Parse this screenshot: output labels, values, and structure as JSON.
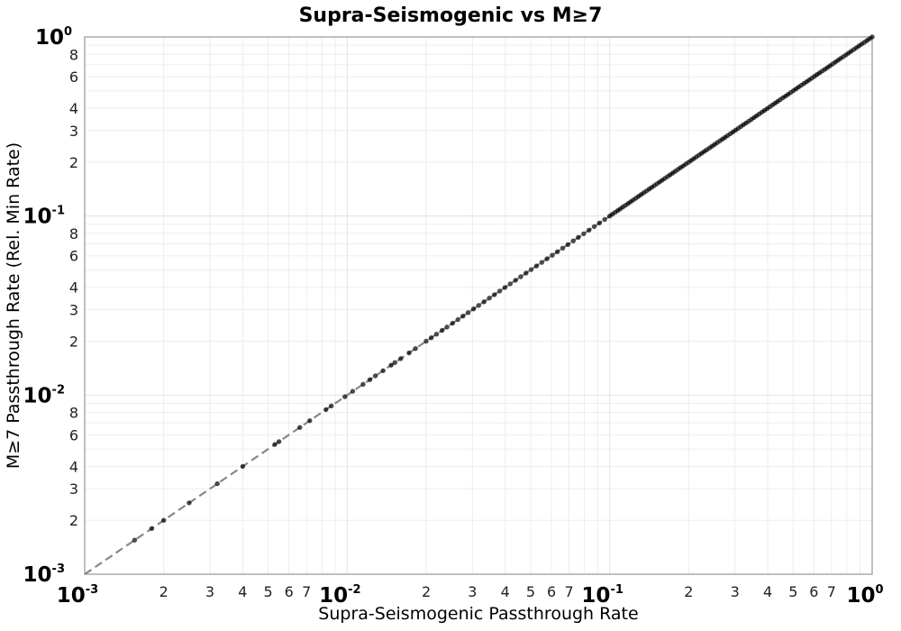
{
  "chart_data": {
    "type": "scatter",
    "title": "Supra-Seismogenic vs M≥7",
    "x_axis": {
      "title": "Supra-Seismogenic Passthrough Rate",
      "scale": "log",
      "lim": [
        0.001,
        1.0
      ],
      "major_tick_exponents": [
        -3,
        -2,
        -1,
        0
      ],
      "minor_tick_labels": [
        2,
        3,
        4,
        5,
        6,
        7
      ]
    },
    "y_axis": {
      "title": "M≥7 Passthrough Rate (Rel. Min Rate)",
      "scale": "log",
      "lim": [
        0.001,
        1.0
      ],
      "major_tick_exponents": [
        -3,
        -2,
        -1,
        0
      ],
      "minor_tick_labels": [
        2,
        3,
        4,
        6,
        8
      ]
    },
    "grid": true,
    "legend": "none",
    "reference_line": {
      "equation": "y = x",
      "from": [
        0.001,
        0.001
      ],
      "to": [
        1.0,
        1.0
      ],
      "style": "dashed",
      "color": "#878787"
    },
    "series": [
      {
        "marker": "circle",
        "marker_color": "rgba(0,0,0,0.70)",
        "x_equals_y": true,
        "values": [
          0.00155,
          0.0018,
          0.002,
          0.0025,
          0.0032,
          0.004,
          0.0053,
          0.0055,
          0.0066,
          0.0072,
          0.0083,
          0.0087,
          0.0098,
          0.0105,
          0.0115,
          0.0122,
          0.0128,
          0.0137,
          0.0147,
          0.0152,
          0.016,
          0.0172,
          0.0182,
          0.02,
          0.0209,
          0.0219,
          0.023,
          0.024,
          0.0252,
          0.0264,
          0.0276,
          0.0289,
          0.0303,
          0.0317,
          0.0332,
          0.0348,
          0.0364,
          0.0381,
          0.0399,
          0.0418,
          0.0438,
          0.0458,
          0.048,
          0.0502,
          0.0526,
          0.0551,
          0.0577,
          0.0604,
          0.0632,
          0.0662,
          0.0693,
          0.0726,
          0.076,
          0.0796,
          0.0834,
          0.0873,
          0.0914,
          0.0957,
          0.1,
          0.1023,
          0.1047,
          0.1072,
          0.1096,
          0.1122,
          0.1148,
          0.1175,
          0.1202,
          0.123,
          0.1259,
          0.1288,
          0.1318,
          0.1349,
          0.138,
          0.1413,
          0.1445,
          0.1479,
          0.1514,
          0.1549,
          0.1585,
          0.1622,
          0.166,
          0.1698,
          0.1738,
          0.1778,
          0.182,
          0.1862,
          0.1905,
          0.195,
          0.1995,
          0.2042,
          0.2089,
          0.2138,
          0.2188,
          0.2239,
          0.2291,
          0.2344,
          0.2399,
          0.2455,
          0.2512,
          0.257,
          0.263,
          0.2692,
          0.2754,
          0.2818,
          0.2884,
          0.2951,
          0.302,
          0.309,
          0.3162,
          0.3236,
          0.3311,
          0.3388,
          0.3467,
          0.3548,
          0.3631,
          0.3715,
          0.3802,
          0.389,
          0.3981,
          0.4074,
          0.4169,
          0.4266,
          0.4365,
          0.4467,
          0.4571,
          0.4677,
          0.4786,
          0.4898,
          0.5012,
          0.5129,
          0.5248,
          0.537,
          0.5495,
          0.5623,
          0.5754,
          0.5888,
          0.6026,
          0.6166,
          0.631,
          0.6457,
          0.6607,
          0.6761,
          0.6918,
          0.7079,
          0.7244,
          0.7413,
          0.7586,
          0.7762,
          0.7943,
          0.8128,
          0.8318,
          0.8511,
          0.871,
          0.8913,
          0.912,
          0.9333,
          0.955,
          0.9772,
          1.0
        ]
      }
    ],
    "colors": {
      "grid_minor": "#ededed",
      "grid_major": "#e3e3e3",
      "plot_border": "#a6a6a6",
      "title_text": "#000000",
      "tick_major_text": "#000000",
      "tick_minor_text": "#222222"
    }
  }
}
